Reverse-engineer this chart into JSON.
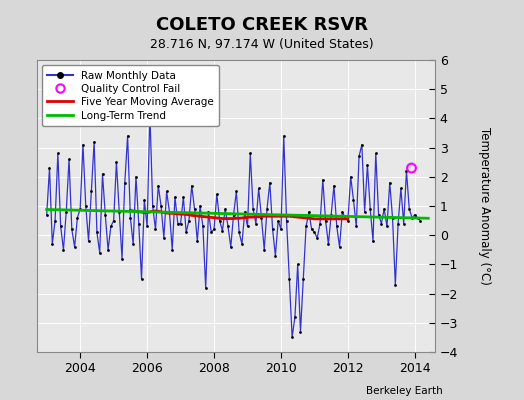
{
  "title": "COLETO CREEK RSVR",
  "subtitle": "28.716 N, 97.174 W (United States)",
  "ylabel": "Temperature Anomaly (°C)",
  "credit": "Berkeley Earth",
  "background_color": "#d8d8d8",
  "plot_bg_color": "#e8e8e8",
  "ylim": [
    -4,
    6
  ],
  "yticks": [
    -4,
    -3,
    -2,
    -1,
    0,
    1,
    2,
    3,
    4,
    5,
    6
  ],
  "xlim_start": 2002.7,
  "xlim_end": 2014.6,
  "xticks": [
    2004,
    2006,
    2008,
    2010,
    2012,
    2014
  ],
  "raw_color": "#3333cc",
  "dot_color": "#000000",
  "ma_color": "#dd0000",
  "trend_color": "#00bb00",
  "qc_color": "#ff00ff",
  "raw_lw": 0.9,
  "ma_lw": 2.0,
  "trend_lw": 2.0,
  "dot_size": 4,
  "raw_data_x": [
    2003.0,
    2003.083,
    2003.167,
    2003.25,
    2003.333,
    2003.417,
    2003.5,
    2003.583,
    2003.667,
    2003.75,
    2003.833,
    2003.917,
    2004.0,
    2004.083,
    2004.167,
    2004.25,
    2004.333,
    2004.417,
    2004.5,
    2004.583,
    2004.667,
    2004.75,
    2004.833,
    2004.917,
    2005.0,
    2005.083,
    2005.167,
    2005.25,
    2005.333,
    2005.417,
    2005.5,
    2005.583,
    2005.667,
    2005.75,
    2005.833,
    2005.917,
    2006.0,
    2006.083,
    2006.167,
    2006.25,
    2006.333,
    2006.417,
    2006.5,
    2006.583,
    2006.667,
    2006.75,
    2006.833,
    2006.917,
    2007.0,
    2007.083,
    2007.167,
    2007.25,
    2007.333,
    2007.417,
    2007.5,
    2007.583,
    2007.667,
    2007.75,
    2007.833,
    2007.917,
    2008.0,
    2008.083,
    2008.167,
    2008.25,
    2008.333,
    2008.417,
    2008.5,
    2008.583,
    2008.667,
    2008.75,
    2008.833,
    2008.917,
    2009.0,
    2009.083,
    2009.167,
    2009.25,
    2009.333,
    2009.417,
    2009.5,
    2009.583,
    2009.667,
    2009.75,
    2009.833,
    2009.917,
    2010.0,
    2010.083,
    2010.167,
    2010.25,
    2010.333,
    2010.417,
    2010.5,
    2010.583,
    2010.667,
    2010.75,
    2010.833,
    2010.917,
    2011.0,
    2011.083,
    2011.167,
    2011.25,
    2011.333,
    2011.417,
    2011.5,
    2011.583,
    2011.667,
    2011.75,
    2011.833,
    2011.917,
    2012.0,
    2012.083,
    2012.167,
    2012.25,
    2012.333,
    2012.417,
    2012.5,
    2012.583,
    2012.667,
    2012.75,
    2012.833,
    2012.917,
    2013.0,
    2013.083,
    2013.167,
    2013.25,
    2013.333,
    2013.417,
    2013.5,
    2013.583,
    2013.667,
    2013.75,
    2013.833,
    2013.917,
    2014.0,
    2014.083,
    2014.167
  ],
  "raw_data_y": [
    0.7,
    2.3,
    -0.3,
    0.5,
    2.8,
    0.3,
    -0.5,
    0.8,
    2.6,
    0.2,
    -0.4,
    0.6,
    0.9,
    3.1,
    1.0,
    -0.2,
    1.5,
    3.2,
    0.1,
    -0.6,
    2.1,
    0.7,
    -0.5,
    0.3,
    0.5,
    2.5,
    0.8,
    -0.8,
    1.8,
    3.4,
    0.6,
    -0.3,
    2.0,
    0.4,
    -1.5,
    1.2,
    0.3,
    4.2,
    1.0,
    0.2,
    1.7,
    1.0,
    -0.1,
    1.5,
    0.8,
    -0.5,
    1.3,
    0.4,
    0.4,
    1.3,
    0.1,
    0.5,
    1.7,
    0.9,
    -0.2,
    1.0,
    0.3,
    -1.8,
    0.8,
    0.1,
    0.2,
    1.4,
    0.5,
    0.15,
    0.9,
    0.3,
    -0.4,
    0.7,
    1.5,
    0.1,
    -0.3,
    0.8,
    0.3,
    2.8,
    0.9,
    0.4,
    1.6,
    0.6,
    -0.5,
    0.9,
    1.8,
    0.2,
    -0.7,
    0.5,
    0.2,
    3.4,
    0.5,
    -1.5,
    -3.5,
    -2.8,
    -1.0,
    -3.3,
    -1.5,
    0.3,
    0.8,
    0.2,
    0.1,
    -0.1,
    0.4,
    1.9,
    0.5,
    -0.3,
    0.7,
    1.7,
    0.3,
    -0.4,
    0.8,
    0.6,
    0.5,
    2.0,
    1.2,
    0.3,
    2.7,
    3.1,
    0.8,
    2.4,
    0.9,
    -0.2,
    2.8,
    0.7,
    0.4,
    0.9,
    0.3,
    1.8,
    0.6,
    -1.7,
    0.4,
    1.6,
    0.4,
    2.2,
    0.9,
    0.6,
    0.7,
    0.6,
    0.5
  ],
  "ma_x": [
    2005.5,
    2005.583,
    2005.667,
    2005.75,
    2005.833,
    2005.917,
    2006.0,
    2006.083,
    2006.167,
    2006.25,
    2006.333,
    2006.417,
    2006.5,
    2006.583,
    2006.667,
    2006.75,
    2006.833,
    2006.917,
    2007.0,
    2007.083,
    2007.167,
    2007.25,
    2007.333,
    2007.417,
    2007.5,
    2007.583,
    2007.667,
    2007.75,
    2007.833,
    2007.917,
    2008.0,
    2008.083,
    2008.167,
    2008.25,
    2008.333,
    2008.417,
    2008.5,
    2008.583,
    2008.667,
    2008.75,
    2008.833,
    2008.917,
    2009.0,
    2009.083,
    2009.167,
    2009.25,
    2009.333,
    2009.417,
    2009.5,
    2009.583,
    2009.667,
    2009.75,
    2009.833,
    2009.917,
    2010.0,
    2010.083,
    2010.167,
    2010.25,
    2010.333,
    2010.417,
    2010.5,
    2010.583,
    2010.667,
    2010.75,
    2010.833,
    2010.917,
    2011.0,
    2011.083,
    2011.167,
    2011.25,
    2011.333,
    2011.417,
    2011.5,
    2011.583,
    2011.667,
    2011.75,
    2011.833,
    2011.917,
    2012.0
  ],
  "ma_y": [
    0.85,
    0.83,
    0.82,
    0.8,
    0.79,
    0.78,
    0.77,
    0.8,
    0.82,
    0.83,
    0.82,
    0.8,
    0.78,
    0.76,
    0.75,
    0.75,
    0.74,
    0.73,
    0.72,
    0.72,
    0.71,
    0.7,
    0.68,
    0.67,
    0.66,
    0.65,
    0.64,
    0.63,
    0.62,
    0.61,
    0.6,
    0.59,
    0.58,
    0.57,
    0.57,
    0.57,
    0.57,
    0.57,
    0.58,
    0.58,
    0.59,
    0.6,
    0.61,
    0.62,
    0.62,
    0.63,
    0.63,
    0.64,
    0.65,
    0.65,
    0.65,
    0.65,
    0.65,
    0.65,
    0.65,
    0.65,
    0.65,
    0.65,
    0.64,
    0.63,
    0.62,
    0.61,
    0.6,
    0.59,
    0.58,
    0.57,
    0.56,
    0.56,
    0.56,
    0.56,
    0.56,
    0.56,
    0.56,
    0.56,
    0.56,
    0.56,
    0.56,
    0.56,
    0.56
  ],
  "trend_x": [
    2003.0,
    2014.4
  ],
  "trend_y": [
    0.88,
    0.58
  ],
  "qc_x": [
    2013.9
  ],
  "qc_y": [
    2.3
  ]
}
